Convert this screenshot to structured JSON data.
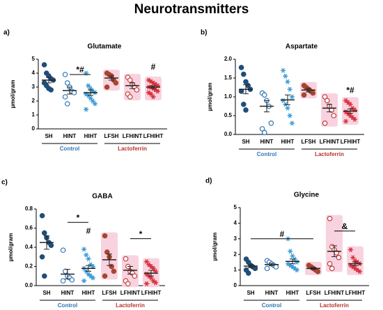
{
  "title": "Neurotransmitters",
  "chart_data": [
    {
      "type": "dot",
      "panel": "a)",
      "title": "Glutamate",
      "ylabel": "µmol/gram",
      "categories": [
        "SH",
        "HINT",
        "HIHT",
        "LFSH",
        "LFHINT",
        "LFHIHT"
      ],
      "colors": [
        "#1f4e79",
        "#2e75b6",
        "#3b9ad6",
        "#a8452f",
        "#c23a3a",
        "#d9303a"
      ],
      "markers": [
        "filled",
        "open",
        "star",
        "filled",
        "open",
        "star"
      ],
      "highlight": "#f8d3df",
      "points": [
        [
          4.6,
          4.0,
          3.8,
          3.6,
          3.5,
          3.3,
          3.1,
          2.9,
          2.8
        ],
        [
          3.9,
          3.3,
          3.0,
          2.7,
          2.6,
          2.3,
          1.8
        ],
        [
          4.0,
          3.1,
          2.9,
          2.7,
          2.6,
          2.5,
          2.4,
          2.2,
          2.0,
          1.8,
          1.4
        ],
        [
          4.0,
          3.9,
          3.8,
          3.5,
          3.3,
          3.0
        ],
        [
          3.7,
          3.5,
          3.2,
          3.0,
          2.8,
          2.5,
          2.3
        ],
        [
          3.5,
          3.4,
          3.3,
          3.2,
          3.1,
          3.0,
          3.0,
          2.9,
          2.8,
          2.7,
          2.6,
          2.5,
          2.3
        ]
      ],
      "means": [
        3.5,
        2.75,
        2.6,
        3.65,
        3.1,
        3.0
      ],
      "sem": [
        0.2,
        0.25,
        0.2,
        0.15,
        0.2,
        0.1
      ],
      "ylim": [
        0,
        5
      ],
      "yticks": [
        0,
        1,
        2,
        3,
        4,
        5
      ],
      "groups": [
        {
          "label": "Control",
          "span": [
            "SH",
            "HIHT"
          ]
        },
        {
          "label": "Lactoferrin",
          "span": [
            "LFSH",
            "LFHIHT"
          ]
        }
      ],
      "group_colors": [
        "#2e75b6",
        "#b5332e"
      ],
      "annotations": [
        {
          "text": "*#",
          "span": [
            "HINT",
            "HIHT"
          ],
          "y": 3.9
        },
        {
          "text": "#",
          "span": [
            "LFHIHT",
            "LFHIHT"
          ],
          "y": 4.1
        }
      ]
    },
    {
      "type": "dot",
      "panel": "b)",
      "title": "Aspartate",
      "ylabel": "µmol/gram",
      "categories": [
        "SH",
        "HINT",
        "HIHT",
        "LFSH",
        "LFHINT",
        "LFHIHT"
      ],
      "colors": [
        "#1f4e79",
        "#2e75b6",
        "#3b9ad6",
        "#a8452f",
        "#c23a3a",
        "#d9303a"
      ],
      "markers": [
        "filled",
        "open",
        "star",
        "filled",
        "open",
        "star"
      ],
      "highlight": "#f8d3df",
      "points": [
        [
          1.78,
          1.6,
          1.4,
          1.3,
          1.2,
          1.15,
          0.8,
          0.65
        ],
        [
          1.1,
          1.05,
          0.9,
          0.75,
          0.3,
          0.15,
          0.05
        ],
        [
          1.7,
          1.55,
          1.4,
          1.2,
          1.0,
          0.9,
          0.8,
          0.7,
          0.5,
          0.3
        ],
        [
          1.3,
          1.25,
          1.2,
          1.15,
          1.1,
          1.05
        ],
        [
          1.0,
          0.9,
          0.75,
          0.65,
          0.5,
          0.3
        ],
        [
          0.9,
          0.85,
          0.8,
          0.7,
          0.65,
          0.6,
          0.55,
          0.5,
          0.45,
          0.4,
          0.35
        ]
      ],
      "means": [
        1.2,
        0.75,
        0.92,
        1.18,
        0.7,
        0.62
      ],
      "sem": [
        0.12,
        0.15,
        0.13,
        0.05,
        0.1,
        0.06
      ],
      "ylim": [
        0,
        2
      ],
      "yticks": [
        {
          "value": 0,
          "label": "0.0"
        },
        0.5,
        {
          "value": 1,
          "label": "1.0"
        },
        1.5,
        {
          "value": 2,
          "label": "2.0"
        }
      ],
      "groups": [
        {
          "label": "Control",
          "span": [
            "SH",
            "HIHT"
          ]
        },
        {
          "label": "Lactoferrin",
          "span": [
            "LFSH",
            "LFHIHT"
          ]
        }
      ],
      "group_colors": [
        "#2e75b6",
        "#b5332e"
      ],
      "annotations": [
        {
          "text": "*#",
          "span": [
            "LFHIHT",
            "LFHIHT"
          ],
          "y": 1.05
        }
      ]
    },
    {
      "type": "dot",
      "panel": "c)",
      "title": "GABA",
      "ylabel": "µmol/gram",
      "categories": [
        "SH",
        "HINT",
        "HIHT",
        "LFSH",
        "LFHINT",
        "LFHIHT"
      ],
      "colors": [
        "#1f4e79",
        "#2e75b6",
        "#3b9ad6",
        "#a8452f",
        "#c23a3a",
        "#d9303a"
      ],
      "markers": [
        "filled",
        "open",
        "star",
        "filled",
        "open",
        "star"
      ],
      "highlight": "#f8d3df",
      "points": [
        [
          0.73,
          0.55,
          0.5,
          0.45,
          0.42,
          0.3,
          0.1
        ],
        [
          0.37,
          0.15,
          0.1,
          0.08,
          0.06,
          0.05
        ],
        [
          0.38,
          0.32,
          0.28,
          0.22,
          0.2,
          0.18,
          0.15,
          0.12,
          0.1,
          0.08,
          0.05
        ],
        [
          0.52,
          0.35,
          0.3,
          0.2,
          0.15,
          0.1
        ],
        [
          0.28,
          0.2,
          0.15,
          0.13,
          0.1,
          0.05,
          0.02
        ],
        [
          0.25,
          0.22,
          0.2,
          0.18,
          0.15,
          0.12,
          0.1,
          0.08,
          0.05,
          0.03,
          0.02
        ]
      ],
      "means": [
        0.45,
        0.12,
        0.18,
        0.27,
        0.16,
        0.13
      ],
      "sem": [
        0.07,
        0.05,
        0.03,
        0.06,
        0.04,
        0.03
      ],
      "ylim": [
        0,
        0.8
      ],
      "yticks": [
        {
          "value": 0,
          "label": "0.0"
        },
        0.2,
        0.4,
        0.6,
        0.8
      ],
      "groups": [
        {
          "label": "Control",
          "span": [
            "SH",
            "HIHT"
          ]
        },
        {
          "label": "Lactoferrin",
          "span": [
            "LFSH",
            "LFHIHT"
          ]
        }
      ],
      "group_colors": [
        "#2e75b6",
        "#b5332e"
      ],
      "annotations": [
        {
          "text": "*",
          "span": [
            "HINT",
            "HIHT"
          ],
          "y": 0.66
        },
        {
          "text": "#",
          "span": [
            "HIHT",
            "HIHT"
          ],
          "y": 0.52
        },
        {
          "text": "*",
          "span": [
            "LFHINT",
            "LFHIHT"
          ],
          "y": 0.49
        }
      ]
    },
    {
      "type": "dot",
      "panel": "d)",
      "title": "Glycine",
      "ylabel": "µmol/gram",
      "categories": [
        "SH",
        "HINT",
        "HIHT",
        "LFSH",
        "LFHINT",
        "LFHIHT"
      ],
      "colors": [
        "#1f4e79",
        "#2e75b6",
        "#3b9ad6",
        "#a8452f",
        "#c23a3a",
        "#d9303a"
      ],
      "markers": [
        "filled",
        "open",
        "star",
        "filled",
        "open",
        "star"
      ],
      "highlight": "#f8d3df",
      "points": [
        [
          1.7,
          1.5,
          1.3,
          1.2,
          1.1,
          1.0,
          0.8
        ],
        [
          1.6,
          1.5,
          1.4,
          1.3,
          1.2,
          1.1
        ],
        [
          3.0,
          2.2,
          1.9,
          1.7,
          1.5,
          1.4,
          1.3,
          1.2,
          1.1,
          1.0
        ],
        [
          1.3,
          1.2,
          1.1,
          1.0,
          0.9
        ],
        [
          4.3,
          2.5,
          2.3,
          2.1,
          1.8,
          1.4,
          1.1
        ],
        [
          2.3,
          1.8,
          1.6,
          1.5,
          1.4,
          1.3,
          1.2,
          1.1,
          1.0,
          0.9
        ]
      ],
      "means": [
        1.25,
        1.35,
        1.55,
        1.1,
        2.2,
        1.4
      ],
      "sem": [
        0.1,
        0.08,
        0.15,
        0.06,
        0.35,
        0.12
      ],
      "ylim": [
        0,
        5
      ],
      "yticks": [
        0,
        1,
        2,
        3,
        4,
        5
      ],
      "groups": [
        {
          "label": "Control",
          "span": [
            "SH",
            "HIHT"
          ]
        },
        {
          "label": "Lactoferrin",
          "span": [
            "LFSH",
            "LFHIHT"
          ]
        }
      ],
      "group_colors": [
        "#2e75b6",
        "#b5332e"
      ],
      "annotations": [
        {
          "text": "#",
          "span": [
            "SH",
            "LFSH"
          ],
          "y": 3.0
        },
        {
          "text": "&",
          "span": [
            "LFHINT",
            "LFHIHT"
          ],
          "y": 3.5
        }
      ]
    }
  ]
}
